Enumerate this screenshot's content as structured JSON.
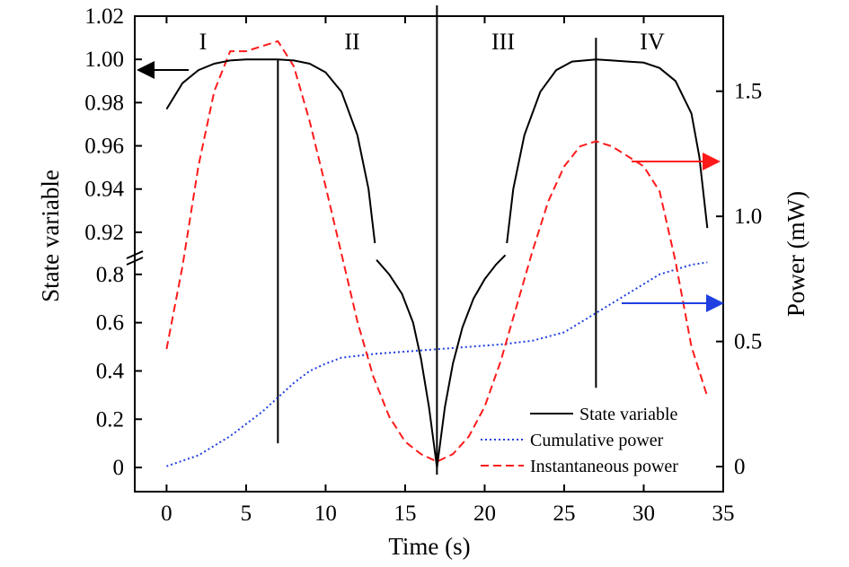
{
  "chart_data": {
    "type": "line",
    "xlabel": "Time (s)",
    "ylabel_left": "State variable",
    "ylabel_right": "Power (mW)",
    "xlim": [
      -2,
      35
    ],
    "x_ticks": [
      "0",
      "5",
      "10",
      "15",
      "20",
      "25",
      "30",
      "35"
    ],
    "y_left_upper": {
      "range": [
        0.91,
        1.02
      ],
      "ticks": [
        "0.92",
        "0.94",
        "0.96",
        "0.98",
        "1.00",
        "1.02"
      ]
    },
    "y_left_lower": {
      "range": [
        -0.1,
        0.87
      ],
      "ticks": [
        "0",
        "0.2",
        "0.4",
        "0.6",
        "0.8"
      ]
    },
    "y_right": {
      "range": [
        -0.1,
        1.8
      ],
      "ticks": [
        "0",
        "0.5",
        "1.0",
        "1.5"
      ]
    },
    "regions": [
      "I",
      "II",
      "III",
      "IV"
    ],
    "region_boundaries_s": [
      7,
      17,
      27
    ],
    "series": [
      {
        "name": "State variable",
        "axis": "left",
        "color": "#000000",
        "dash": "solid",
        "upper_segments": [
          [
            [
              0,
              0.977
            ],
            [
              1,
              0.989
            ],
            [
              2,
              0.995
            ],
            [
              3,
              0.998
            ],
            [
              4,
              0.9995
            ],
            [
              5,
              1.0
            ],
            [
              6,
              1.0
            ],
            [
              7,
              1.0
            ],
            [
              8,
              0.9995
            ],
            [
              9,
              0.998
            ],
            [
              10,
              0.994
            ],
            [
              11,
              0.985
            ],
            [
              12,
              0.965
            ],
            [
              12.7,
              0.94
            ],
            [
              13.1,
              0.915
            ]
          ],
          [
            [
              21.4,
              0.915
            ],
            [
              21.8,
              0.94
            ],
            [
              22.5,
              0.965
            ],
            [
              23.5,
              0.985
            ],
            [
              24.5,
              0.995
            ],
            [
              25.5,
              0.999
            ],
            [
              27,
              1.0
            ],
            [
              28,
              0.9995
            ],
            [
              29,
              0.999
            ],
            [
              30,
              0.9985
            ],
            [
              31,
              0.996
            ],
            [
              32,
              0.99
            ],
            [
              33,
              0.975
            ],
            [
              33.5,
              0.955
            ],
            [
              34,
              0.922
            ]
          ]
        ],
        "lower_segments": [
          [
            [
              13.2,
              0.86
            ],
            [
              14,
              0.8
            ],
            [
              14.8,
              0.72
            ],
            [
              15.5,
              0.6
            ],
            [
              16,
              0.45
            ],
            [
              16.5,
              0.25
            ],
            [
              17,
              0.0
            ],
            [
              17.5,
              0.25
            ],
            [
              18,
              0.43
            ],
            [
              18.6,
              0.58
            ],
            [
              19.3,
              0.7
            ],
            [
              20,
              0.78
            ],
            [
              20.7,
              0.84
            ],
            [
              21.3,
              0.88
            ]
          ]
        ]
      },
      {
        "name": "Cumulative power",
        "axis": "left",
        "color": "#1f3fe0",
        "dash": "dotted",
        "points": [
          [
            0,
            0.005
          ],
          [
            2,
            0.05
          ],
          [
            4,
            0.13
          ],
          [
            6,
            0.23
          ],
          [
            7,
            0.29
          ],
          [
            8,
            0.35
          ],
          [
            9,
            0.4
          ],
          [
            10,
            0.43
          ],
          [
            11,
            0.455
          ],
          [
            13,
            0.47
          ],
          [
            15,
            0.48
          ],
          [
            17,
            0.49
          ],
          [
            19,
            0.5
          ],
          [
            21,
            0.51
          ],
          [
            23,
            0.525
          ],
          [
            25,
            0.56
          ],
          [
            27,
            0.64
          ],
          [
            29,
            0.72
          ],
          [
            31,
            0.8
          ],
          [
            33,
            0.84
          ],
          [
            34,
            0.85
          ]
        ]
      },
      {
        "name": "Instantaneous power",
        "axis": "right",
        "color": "#ff1a1a",
        "dash": "dashed",
        "points": [
          [
            0,
            0.47
          ],
          [
            1,
            0.8
          ],
          [
            2,
            1.2
          ],
          [
            3,
            1.5
          ],
          [
            4,
            1.66
          ],
          [
            5,
            1.66
          ],
          [
            6,
            1.68
          ],
          [
            7,
            1.7
          ],
          [
            8,
            1.6
          ],
          [
            9,
            1.38
          ],
          [
            10,
            1.12
          ],
          [
            11,
            0.85
          ],
          [
            12,
            0.58
          ],
          [
            13,
            0.36
          ],
          [
            14,
            0.2
          ],
          [
            15,
            0.1
          ],
          [
            16,
            0.05
          ],
          [
            17,
            0.02
          ],
          [
            18,
            0.05
          ],
          [
            19,
            0.12
          ],
          [
            20,
            0.24
          ],
          [
            21,
            0.42
          ],
          [
            22,
            0.64
          ],
          [
            23,
            0.86
          ],
          [
            24,
            1.06
          ],
          [
            25,
            1.2
          ],
          [
            26,
            1.28
          ],
          [
            27,
            1.3
          ],
          [
            28,
            1.28
          ],
          [
            29,
            1.24
          ],
          [
            30,
            1.2
          ],
          [
            31,
            1.1
          ],
          [
            32,
            0.82
          ],
          [
            33,
            0.48
          ],
          [
            34,
            0.28
          ]
        ]
      }
    ],
    "region_lines": [
      {
        "x": 7,
        "y_top": 1.0,
        "y_bottom": 0.1
      },
      {
        "x": 17,
        "y_top": 1.025,
        "y_bottom": -0.03
      },
      {
        "x": 27,
        "y_top": 1.01,
        "y_bottom": 0.33
      }
    ],
    "legend": {
      "position": "bottom-right",
      "items": [
        {
          "label": "State variable",
          "color": "#000000",
          "dash": "solid"
        },
        {
          "label": "Cumulative power",
          "color": "#1f3fe0",
          "dash": "dotted"
        },
        {
          "label": "Instantaneous power",
          "color": "#ff1a1a",
          "dash": "dashed"
        }
      ]
    },
    "axis_indicator_colors": {
      "state": "#000000",
      "instantaneous": "#ff1a1a",
      "cumulative": "#1f3fe0"
    }
  }
}
